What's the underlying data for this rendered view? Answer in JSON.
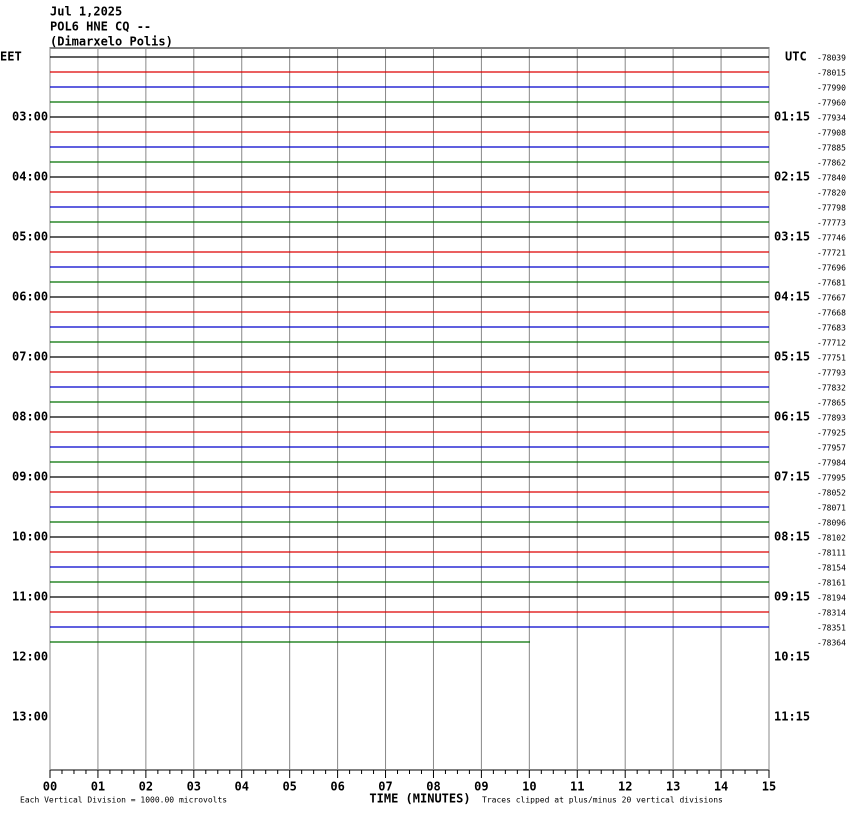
{
  "header": {
    "date": "Jul 1,2025",
    "station": "POL6 HNE CQ --",
    "location": "(Dimarxelo Polis)"
  },
  "left_axis": {
    "label": "EET",
    "ticks": [
      "03:00",
      "04:00",
      "05:00",
      "06:00",
      "07:00",
      "08:00",
      "09:00",
      "10:00",
      "11:00",
      "12:00",
      "13:00"
    ]
  },
  "right_axis": {
    "label": "UTC",
    "ticks": [
      "01:15",
      "02:15",
      "03:15",
      "04:15",
      "05:15",
      "06:15",
      "07:15",
      "08:15",
      "09:15",
      "10:15",
      "11:15"
    ]
  },
  "trace_offsets": [
    "-78039",
    "-78015",
    "-77990",
    "-77960",
    "-77934",
    "-77908",
    "-77885",
    "-77862",
    "-77840",
    "-77820",
    "-77798",
    "-77773",
    "-77746",
    "-77721",
    "-77696",
    "-77681",
    "-77667",
    "-77668",
    "-77683",
    "-77712",
    "-77751",
    "-77793",
    "-77832",
    "-77865",
    "-77893",
    "-77925",
    "-77957",
    "-77984",
    "-77995",
    "-78052",
    "-78071",
    "-78096",
    "-78102",
    "-78111",
    "-78154",
    "-78161",
    "-78194",
    "-78314",
    "-78351",
    "-78364"
  ],
  "x_axis": {
    "title": "TIME (MINUTES)",
    "ticks": [
      "00",
      "01",
      "02",
      "03",
      "04",
      "05",
      "06",
      "07",
      "08",
      "09",
      "10",
      "11",
      "12",
      "13",
      "14",
      "15"
    ]
  },
  "footer": {
    "scale": "Each Vertical Division = 1000.00 microvolts",
    "clip": "Traces clipped at plus/minus 20 vertical divisions"
  }
}
